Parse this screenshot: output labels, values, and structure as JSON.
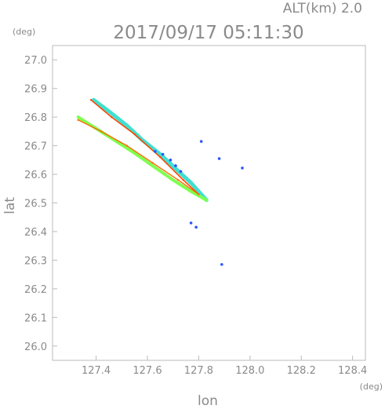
{
  "chart_data": {
    "type": "scatter",
    "header_alt": "ALT(km) 2.0",
    "title": "2017/09/17 05:11:30",
    "ylabel": "lat",
    "xlabel": "lon",
    "y_unit": "(deg)",
    "x_unit": "(deg)",
    "xlim": [
      127.23,
      128.45
    ],
    "ylim": [
      25.95,
      27.05
    ],
    "x_ticks": [
      "127.4",
      "127.6",
      "127.8",
      "128.0",
      "128.2",
      "128.4"
    ],
    "x_tick_values": [
      127.4,
      127.6,
      127.8,
      128.0,
      128.2,
      128.4
    ],
    "y_ticks": [
      "27.0",
      "26.9",
      "26.8",
      "26.7",
      "26.6",
      "26.5",
      "26.4",
      "26.3",
      "26.2",
      "26.1",
      "26.0"
    ],
    "y_tick_values": [
      27.0,
      26.9,
      26.8,
      26.7,
      26.6,
      26.5,
      26.4,
      26.3,
      26.2,
      26.1,
      26.0
    ],
    "grid": false,
    "series": [
      {
        "color": "#40e0d0",
        "points": [
          [
            127.39,
            26.86
          ],
          [
            127.45,
            26.82
          ],
          [
            127.52,
            26.77
          ],
          [
            127.58,
            26.72
          ],
          [
            127.65,
            26.67
          ],
          [
            127.71,
            26.62
          ],
          [
            127.77,
            26.57
          ],
          [
            127.83,
            26.51
          ]
        ]
      },
      {
        "color": "#7fff50",
        "points": [
          [
            127.33,
            26.8
          ],
          [
            127.4,
            26.76
          ],
          [
            127.47,
            26.72
          ],
          [
            127.54,
            26.68
          ],
          [
            127.62,
            26.63
          ],
          [
            127.7,
            26.58
          ],
          [
            127.77,
            26.54
          ],
          [
            127.83,
            26.51
          ]
        ]
      },
      {
        "color": "#ff4500",
        "points": [
          [
            127.38,
            26.86
          ],
          [
            127.46,
            26.8
          ],
          [
            127.55,
            26.74
          ],
          [
            127.65,
            26.66
          ],
          [
            127.74,
            26.58
          ],
          [
            127.8,
            26.53
          ]
        ]
      },
      {
        "color": "#ff6a00",
        "points": [
          [
            127.33,
            26.79
          ],
          [
            127.42,
            26.75
          ],
          [
            127.52,
            26.7
          ],
          [
            127.62,
            26.64
          ],
          [
            127.72,
            26.58
          ],
          [
            127.8,
            26.53
          ]
        ]
      },
      {
        "color": "#2b54ff",
        "points": [
          [
            127.63,
            26.68
          ],
          [
            127.66,
            26.67
          ],
          [
            127.69,
            26.65
          ],
          [
            127.71,
            26.63
          ],
          [
            127.73,
            26.61
          ],
          [
            127.81,
            26.715
          ],
          [
            127.88,
            26.655
          ],
          [
            127.77,
            26.43
          ],
          [
            127.79,
            26.415
          ],
          [
            127.89,
            26.285
          ],
          [
            127.97,
            26.622
          ]
        ]
      }
    ]
  }
}
